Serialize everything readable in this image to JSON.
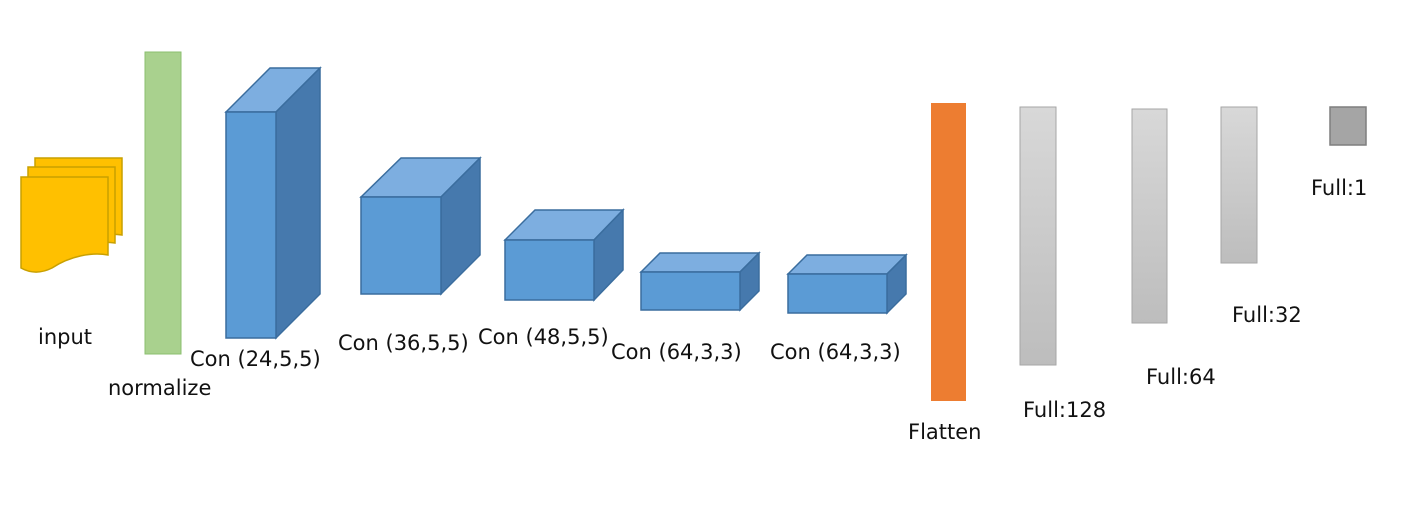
{
  "colors": {
    "input_fill": "#FFC000",
    "input_stroke": "#C9A000",
    "normalize_fill": "#A9D18E",
    "normalize_stroke": "#8BBF6F",
    "conv_front": "#5B9BD5",
    "conv_top": "#7DAEE0",
    "conv_side": "#4679AD",
    "conv_stroke": "#3A6D9E",
    "flatten_fill": "#ED7D31",
    "full_light": "#C8C8C8",
    "full_stroke": "#A6A6A6",
    "full_dark": "#A5A5A5",
    "full_dark_stroke": "#7F7F7F"
  },
  "layers": {
    "input": {
      "label": "input",
      "icon": "document-stack-icon"
    },
    "normalize": {
      "label": "normalize"
    },
    "conv1": {
      "label": "Con (24,5,5)"
    },
    "conv2": {
      "label": "Con (36,5,5)"
    },
    "conv3": {
      "label": "Con (48,5,5)"
    },
    "conv4": {
      "label": "Con (64,3,3)"
    },
    "conv5": {
      "label": "Con (64,3,3)"
    },
    "flatten": {
      "label": "Flatten"
    },
    "full128": {
      "label": "Full:128"
    },
    "full64": {
      "label": "Full:64"
    },
    "full32": {
      "label": "Full:32"
    },
    "full1": {
      "label": "Full:1"
    }
  }
}
